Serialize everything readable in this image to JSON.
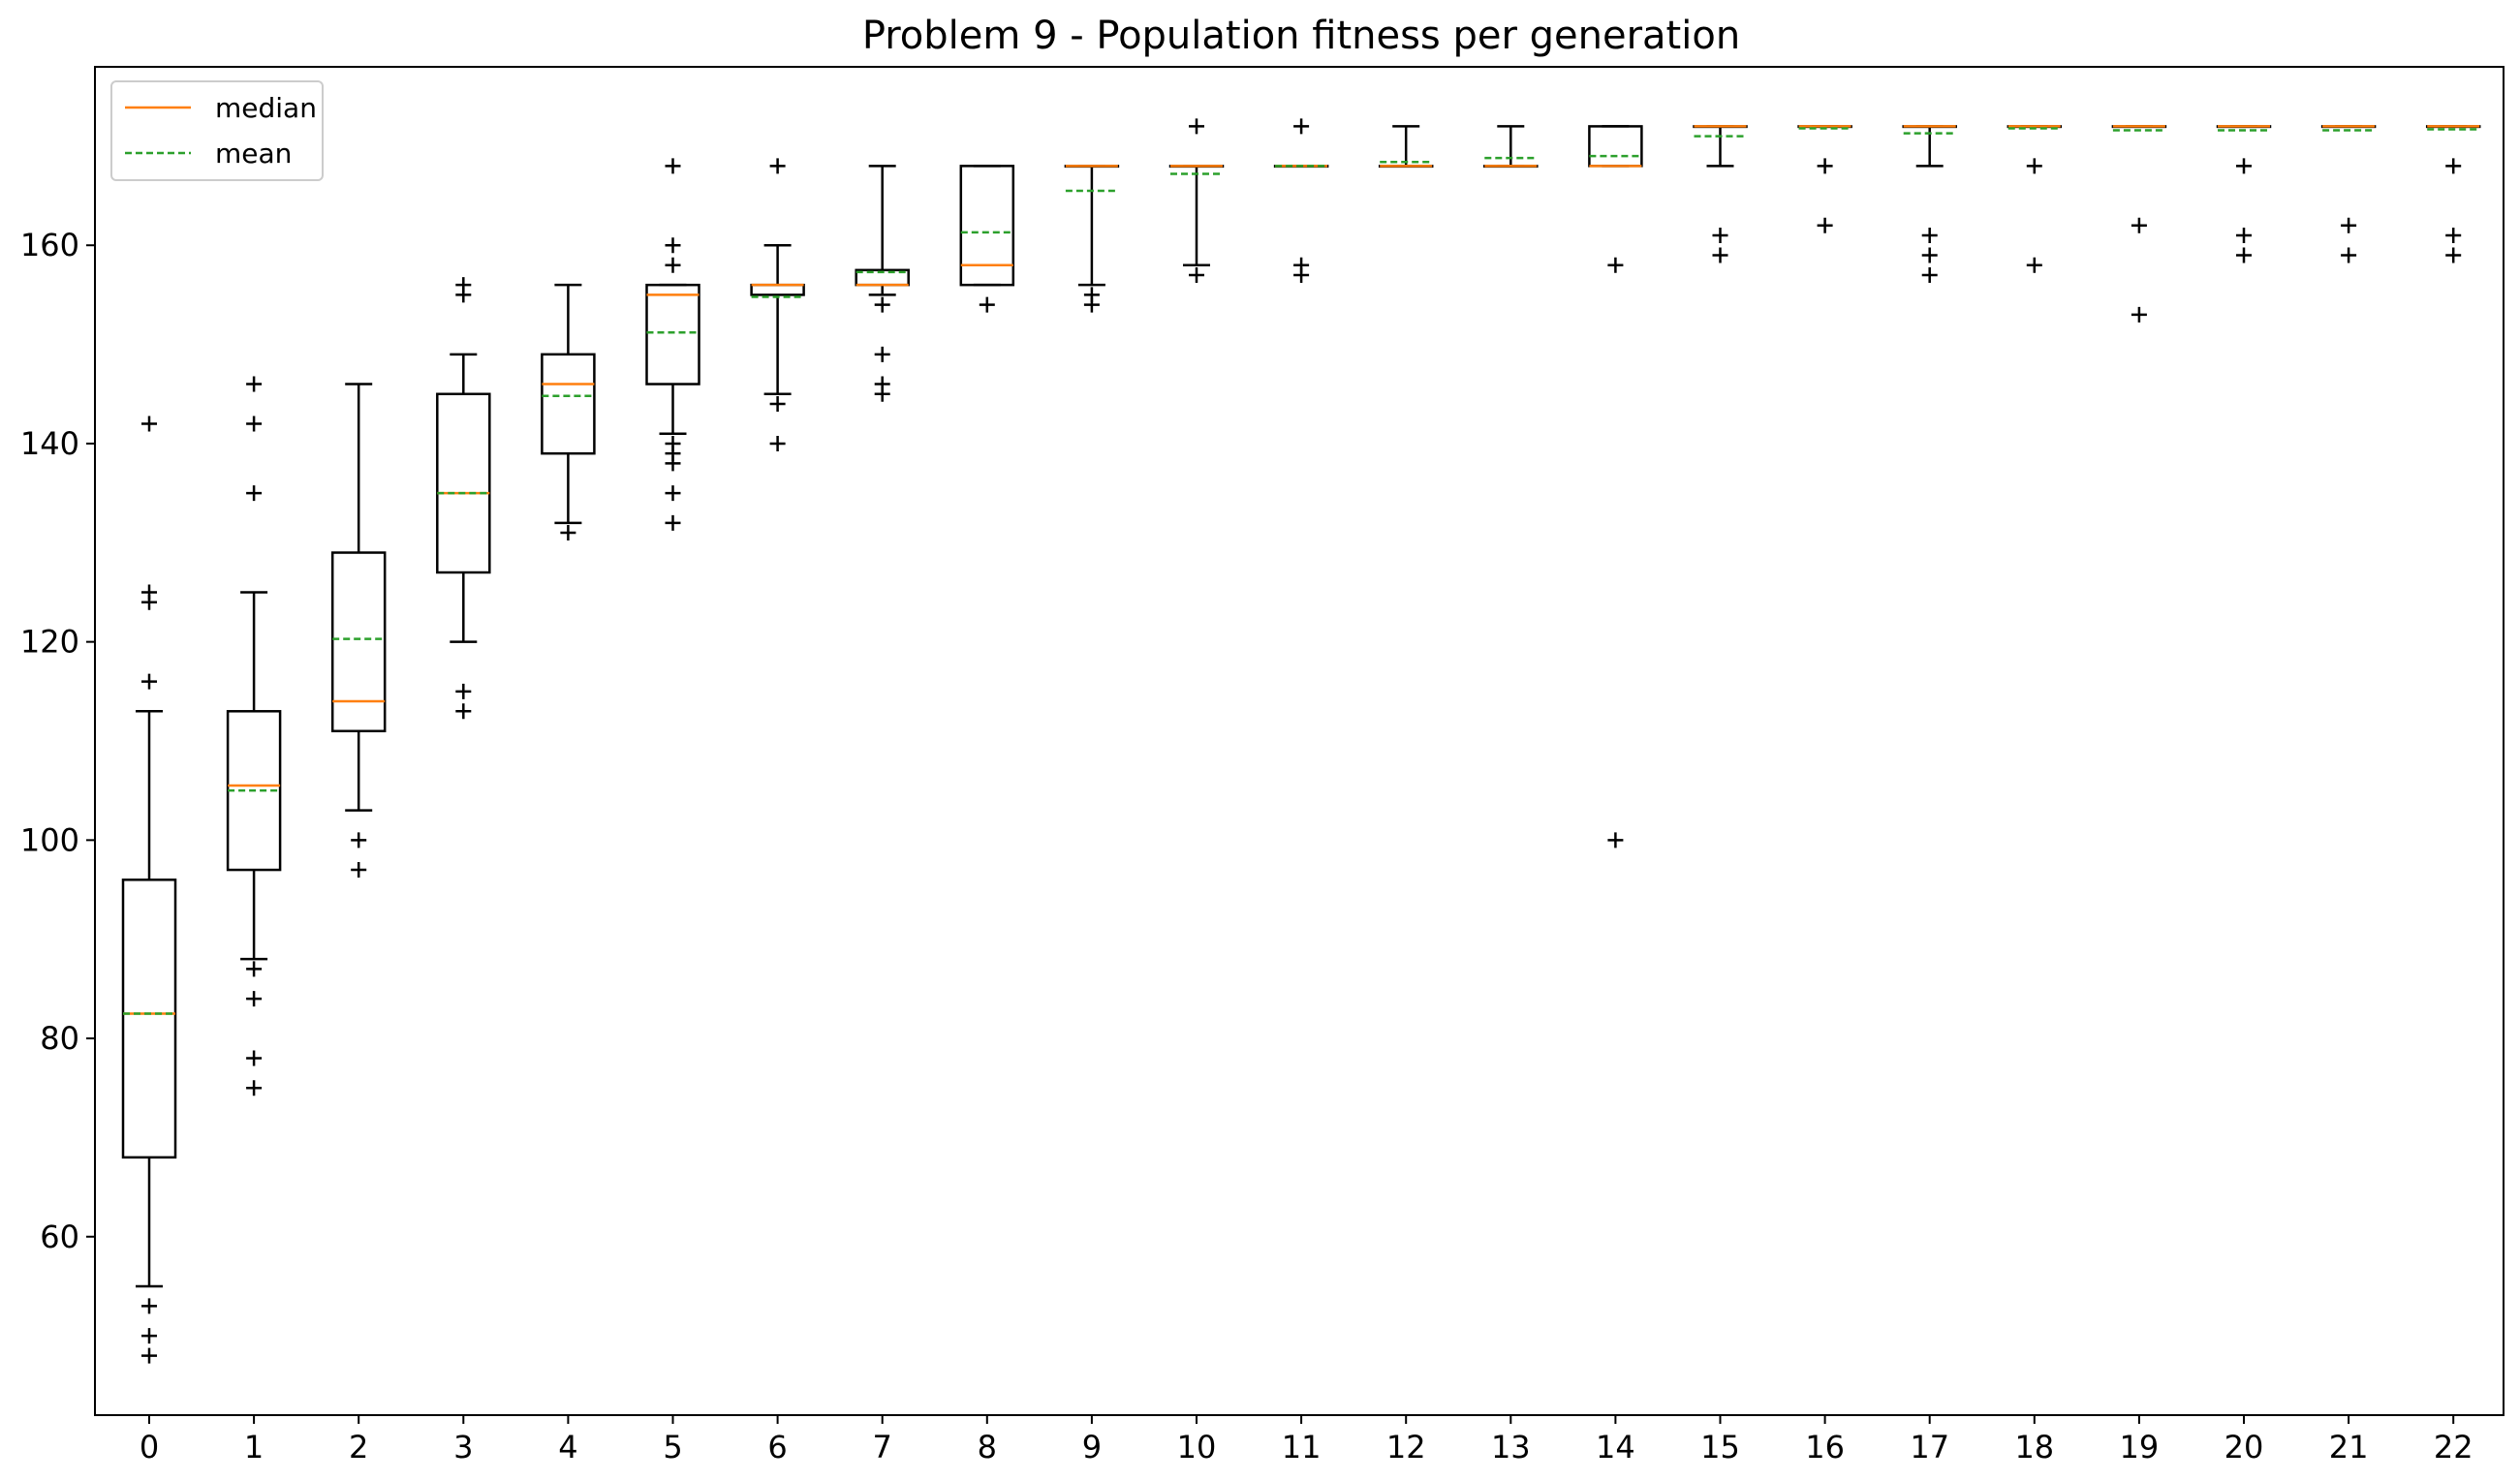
{
  "chart_data": {
    "type": "box",
    "title": "Problem 9 - Population fitness per generation",
    "xlabel": "",
    "ylabel": "",
    "ylim": [
      42,
      178
    ],
    "yticks": [
      60,
      80,
      100,
      120,
      140,
      160
    ],
    "grid": false,
    "legend": {
      "placement": "top-left",
      "entries": [
        {
          "label": "median",
          "color": "#ff7f0e",
          "style": "solid"
        },
        {
          "label": "mean",
          "color": "#2ca02c",
          "style": "dashed"
        }
      ]
    },
    "colors": {
      "median": "#ff7f0e",
      "mean": "#2ca02c",
      "box": "#000000"
    },
    "categories": [
      "0",
      "1",
      "2",
      "3",
      "4",
      "5",
      "6",
      "7",
      "8",
      "9",
      "10",
      "11",
      "12",
      "13",
      "14",
      "15",
      "16",
      "17",
      "18",
      "19",
      "20",
      "21",
      "22"
    ],
    "boxes": [
      {
        "q1": 68,
        "median": 82.5,
        "q3": 96,
        "mean": 82.5,
        "whislo": 55,
        "whishi": 113,
        "fliers": [
          53,
          50,
          48,
          116,
          124,
          125,
          142
        ]
      },
      {
        "q1": 97,
        "median": 105.5,
        "q3": 113,
        "mean": 105,
        "whislo": 88,
        "whishi": 125,
        "fliers": [
          87,
          84,
          78,
          75,
          135,
          142,
          146
        ]
      },
      {
        "q1": 111,
        "median": 114,
        "q3": 129,
        "mean": 120.3,
        "whislo": 103,
        "whishi": 146,
        "fliers": [
          100,
          97
        ]
      },
      {
        "q1": 127,
        "median": 135,
        "q3": 145,
        "mean": 135,
        "whislo": 120,
        "whishi": 149,
        "fliers": [
          115,
          113,
          155,
          156
        ]
      },
      {
        "q1": 139,
        "median": 146,
        "q3": 149,
        "mean": 144.8,
        "whislo": 132,
        "whishi": 156,
        "fliers": [
          131
        ]
      },
      {
        "q1": 146,
        "median": 155,
        "q3": 156,
        "mean": 151.2,
        "whislo": 141,
        "whishi": 156,
        "fliers": [
          140,
          139,
          138,
          135,
          132,
          158,
          160,
          168
        ]
      },
      {
        "q1": 155,
        "median": 156,
        "q3": 156,
        "mean": 154.8,
        "whislo": 145,
        "whishi": 160,
        "fliers": [
          144,
          140,
          168
        ]
      },
      {
        "q1": 156,
        "median": 156,
        "q3": 157.5,
        "mean": 157.3,
        "whislo": 155,
        "whishi": 168,
        "fliers": [
          154,
          149,
          146,
          145
        ]
      },
      {
        "q1": 156,
        "median": 158,
        "q3": 168,
        "mean": 161.3,
        "whislo": 156,
        "whishi": 168,
        "fliers": [
          154
        ]
      },
      {
        "q1": 168,
        "median": 168,
        "q3": 168,
        "mean": 165.5,
        "whislo": 156,
        "whishi": 168,
        "fliers": [
          155,
          154
        ]
      },
      {
        "q1": 168,
        "median": 168,
        "q3": 168,
        "mean": 167.2,
        "whislo": 158,
        "whishi": 168,
        "fliers": [
          157,
          172
        ]
      },
      {
        "q1": 168,
        "median": 168,
        "q3": 168,
        "mean": 168,
        "whislo": 168,
        "whishi": 168,
        "fliers": [
          158,
          157,
          172
        ]
      },
      {
        "q1": 168,
        "median": 168,
        "q3": 168,
        "mean": 168.4,
        "whislo": 168,
        "whishi": 172,
        "fliers": []
      },
      {
        "q1": 168,
        "median": 168,
        "q3": 168,
        "mean": 168.8,
        "whislo": 168,
        "whishi": 172,
        "fliers": []
      },
      {
        "q1": 168,
        "median": 168,
        "q3": 172,
        "mean": 169,
        "whislo": 168,
        "whishi": 172,
        "fliers": [
          158,
          100
        ]
      },
      {
        "q1": 172,
        "median": 172,
        "q3": 172,
        "mean": 171,
        "whislo": 168,
        "whishi": 172,
        "fliers": [
          161,
          159
        ]
      },
      {
        "q1": 172,
        "median": 172,
        "q3": 172,
        "mean": 171.8,
        "whislo": 172,
        "whishi": 172,
        "fliers": [
          168,
          162
        ]
      },
      {
        "q1": 172,
        "median": 172,
        "q3": 172,
        "mean": 171.3,
        "whislo": 168,
        "whishi": 172,
        "fliers": [
          161,
          159,
          157
        ]
      },
      {
        "q1": 172,
        "median": 172,
        "q3": 172,
        "mean": 171.8,
        "whislo": 172,
        "whishi": 172,
        "fliers": [
          168,
          158
        ]
      },
      {
        "q1": 172,
        "median": 172,
        "q3": 172,
        "mean": 171.6,
        "whislo": 172,
        "whishi": 172,
        "fliers": [
          162,
          153
        ]
      },
      {
        "q1": 172,
        "median": 172,
        "q3": 172,
        "mean": 171.6,
        "whislo": 172,
        "whishi": 172,
        "fliers": [
          168,
          161,
          159
        ]
      },
      {
        "q1": 172,
        "median": 172,
        "q3": 172,
        "mean": 171.6,
        "whislo": 172,
        "whishi": 172,
        "fliers": [
          162,
          159
        ]
      },
      {
        "q1": 172,
        "median": 172,
        "q3": 172,
        "mean": 171.7,
        "whislo": 172,
        "whishi": 172,
        "fliers": [
          168,
          161,
          159
        ]
      }
    ]
  }
}
